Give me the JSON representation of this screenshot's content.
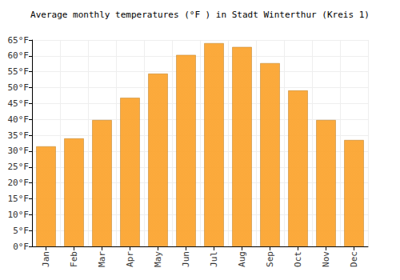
{
  "chart_data": {
    "type": "bar",
    "title": "Average monthly temperatures (°F ) in Stadt Winterthur (Kreis 1)",
    "categories": [
      "Jan",
      "Feb",
      "Mar",
      "Apr",
      "May",
      "Jun",
      "Jul",
      "Aug",
      "Sep",
      "Oct",
      "Nov",
      "Dec"
    ],
    "values": [
      31.5,
      34,
      39.8,
      46.8,
      54.4,
      60.3,
      64,
      62.8,
      57.7,
      49.1,
      39.8,
      33.5
    ],
    "color": "#fba531",
    "ylim": [
      0,
      65
    ],
    "yticks": [
      {
        "value": 0,
        "label": "0°F"
      },
      {
        "value": 5,
        "label": "5°F"
      },
      {
        "value": 10,
        "label": "10°F"
      },
      {
        "value": 15,
        "label": "15°F"
      },
      {
        "value": 20,
        "label": "20°F"
      },
      {
        "value": 25,
        "label": "25°F"
      },
      {
        "value": 30,
        "label": "30°F"
      },
      {
        "value": 35,
        "label": "35°F"
      },
      {
        "value": 40,
        "label": "40°F"
      },
      {
        "value": 45,
        "label": "45°F"
      },
      {
        "value": 50,
        "label": "50°F"
      },
      {
        "value": 55,
        "label": "55°F"
      },
      {
        "value": 60,
        "label": "60°F"
      },
      {
        "value": 65,
        "label": "65°F"
      }
    ],
    "grid": true
  }
}
